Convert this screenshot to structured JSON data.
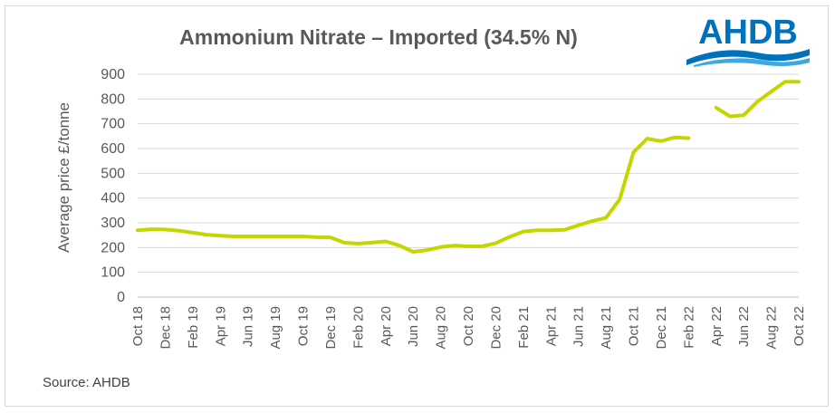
{
  "chart_data": {
    "type": "line",
    "title": "Ammonium Nitrate – Imported (34.5% N)",
    "xlabel": "",
    "ylabel": "Average price £/tonne",
    "ylim": [
      0,
      900
    ],
    "yticks": [
      0,
      100,
      200,
      300,
      400,
      500,
      600,
      700,
      800,
      900
    ],
    "grid": true,
    "legend": "none",
    "x": [
      "Oct 18",
      "Nov 18",
      "Dec 18",
      "Jan 19",
      "Feb 19",
      "Mar 19",
      "Apr 19",
      "May 19",
      "Jun 19",
      "Jul 19",
      "Aug 19",
      "Sep 19",
      "Oct 19",
      "Nov 19",
      "Dec 19",
      "Jan 20",
      "Feb 20",
      "Mar 20",
      "Apr 20",
      "May 20",
      "Jun 20",
      "Jul 20",
      "Aug 20",
      "Sep 20",
      "Oct 20",
      "Nov 20",
      "Dec 20",
      "Jan 21",
      "Feb 21",
      "Mar 21",
      "Apr 21",
      "May 21",
      "Jun 21",
      "Jul 21",
      "Aug 21",
      "Sep 21",
      "Oct 21",
      "Nov 21",
      "Dec 21",
      "Jan 22",
      "Feb 22",
      "Mar 22",
      "Apr 22",
      "May 22",
      "Jun 22",
      "Jul 22",
      "Aug 22",
      "Sep 22",
      "Oct 22"
    ],
    "xtick_labels": [
      "Oct 18",
      "Dec 18",
      "Feb 19",
      "Apr 19",
      "Jun 19",
      "Aug 19",
      "Oct 19",
      "Dec 19",
      "Feb 20",
      "Apr 20",
      "Jun 20",
      "Aug 20",
      "Oct 20",
      "Dec 20",
      "Feb 21",
      "Apr 21",
      "Jun 21",
      "Aug 21",
      "Oct 21",
      "Dec 21",
      "Feb 22",
      "Apr 22",
      "Jun 22",
      "Aug 22",
      "Oct 22"
    ],
    "series": [
      {
        "color": "#c4d600",
        "values": [
          270,
          274,
          273,
          268,
          260,
          252,
          248,
          245,
          245,
          245,
          245,
          245,
          245,
          242,
          241,
          220,
          216,
          220,
          225,
          208,
          183,
          190,
          202,
          208,
          205,
          205,
          218,
          243,
          265,
          270,
          270,
          272,
          290,
          307,
          320,
          395,
          585,
          640,
          630,
          645,
          642,
          null,
          765,
          730,
          735,
          790,
          830,
          870,
          870
        ]
      }
    ]
  },
  "source": "Source: AHDB",
  "logo": {
    "text": "AHDB",
    "color": "#0072bc"
  }
}
